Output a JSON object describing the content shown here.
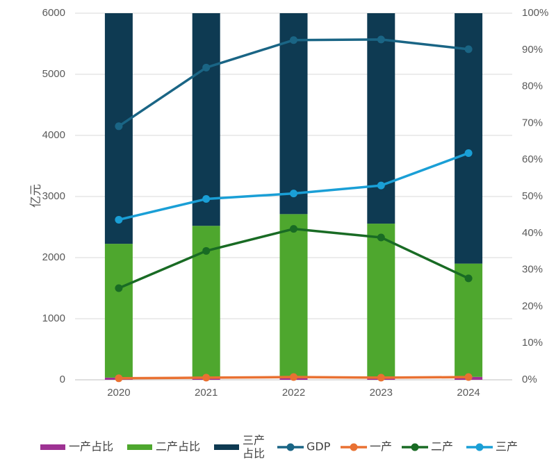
{
  "chart_data": {
    "type": "bar",
    "categories": [
      "2020",
      "2021",
      "2022",
      "2023",
      "2024"
    ],
    "ylabel": "亿元",
    "ylim": [
      0,
      6000
    ],
    "y2lim": [
      0,
      1
    ],
    "y_ticks": [
      "0",
      "1000",
      "2000",
      "3000",
      "4000",
      "5000",
      "6000"
    ],
    "y2_ticks": [
      "0%",
      "10%",
      "20%",
      "30%",
      "40%",
      "50%",
      "60%",
      "70%",
      "80%",
      "90%",
      "100%"
    ],
    "grid": true,
    "legend_position": "bottom",
    "bar_series": [
      {
        "name": "一产占比",
        "axis": "right",
        "color": "#9e3293",
        "values": [
          0.006,
          0.005,
          0.005,
          0.005,
          0.008
        ]
      },
      {
        "name": "二产占比",
        "axis": "right",
        "color": "#4ea72e",
        "values": [
          0.365,
          0.415,
          0.447,
          0.421,
          0.309
        ]
      },
      {
        "name": "三产占比",
        "axis": "right",
        "color": "#0e3a52",
        "values": [
          0.629,
          0.58,
          0.548,
          0.574,
          0.683
        ]
      }
    ],
    "line_series": [
      {
        "name": "GDP",
        "axis": "left",
        "color": "#1a6585",
        "values": [
          4150,
          5110,
          5560,
          5570,
          5410
        ]
      },
      {
        "name": "一产",
        "axis": "left",
        "color": "#e97132",
        "values": [
          25,
          35,
          45,
          35,
          45
        ]
      },
      {
        "name": "二产",
        "axis": "left",
        "color": "#196b24",
        "values": [
          1500,
          2110,
          2470,
          2330,
          1660
        ]
      },
      {
        "name": "三产",
        "axis": "left",
        "color": "#1a9fd6",
        "values": [
          2620,
          2960,
          3050,
          3180,
          3710
        ]
      }
    ],
    "legend_items": [
      {
        "label": "一产占比",
        "kind": "bar"
      },
      {
        "label": "二产占比",
        "kind": "bar"
      },
      {
        "label": "三产占比",
        "kind": "bar",
        "lines": [
          "三产",
          "占比"
        ]
      },
      {
        "label": "GDP",
        "kind": "line"
      },
      {
        "label": "一产",
        "kind": "line"
      },
      {
        "label": "二产",
        "kind": "line"
      },
      {
        "label": "三产",
        "kind": "line"
      }
    ]
  }
}
